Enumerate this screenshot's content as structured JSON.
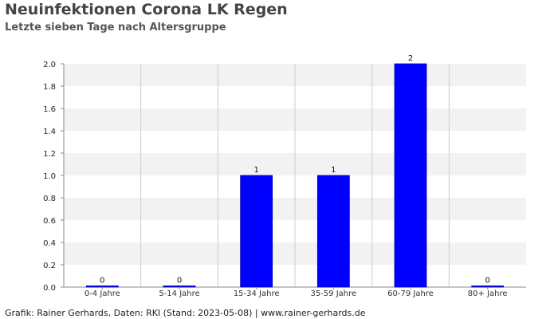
{
  "title": "Neuinfektionen Corona LK Regen",
  "subtitle": "Letzte sieben Tage nach Altersgruppe",
  "footer": "Grafik: Rainer Gerhards, Daten: RKI (Stand: 2023-05-08) | www.rainer-gerhards.de",
  "colors": {
    "bar": "#0000ff",
    "band": "#f2f2f2",
    "grid": "#cccccc",
    "axis": "#888888"
  },
  "chart_data": {
    "type": "bar",
    "categories": [
      "0-4 Jahre",
      "5-14 Jahre",
      "15-34 Jahre",
      "35-59 Jahre",
      "60-79 Jahre",
      "80+ Jahre"
    ],
    "values": [
      0,
      0,
      1,
      1,
      2,
      0
    ],
    "data_labels": [
      "0",
      "0",
      "1",
      "1",
      "2",
      "0"
    ],
    "ylim": [
      0,
      2.0
    ],
    "yticks": [
      "0.0",
      "0.2",
      "0.4",
      "0.6",
      "0.8",
      "1.0",
      "1.2",
      "1.4",
      "1.6",
      "1.8",
      "2.0"
    ],
    "xlabel": "",
    "ylabel": "",
    "grid": true,
    "legend": "none"
  }
}
